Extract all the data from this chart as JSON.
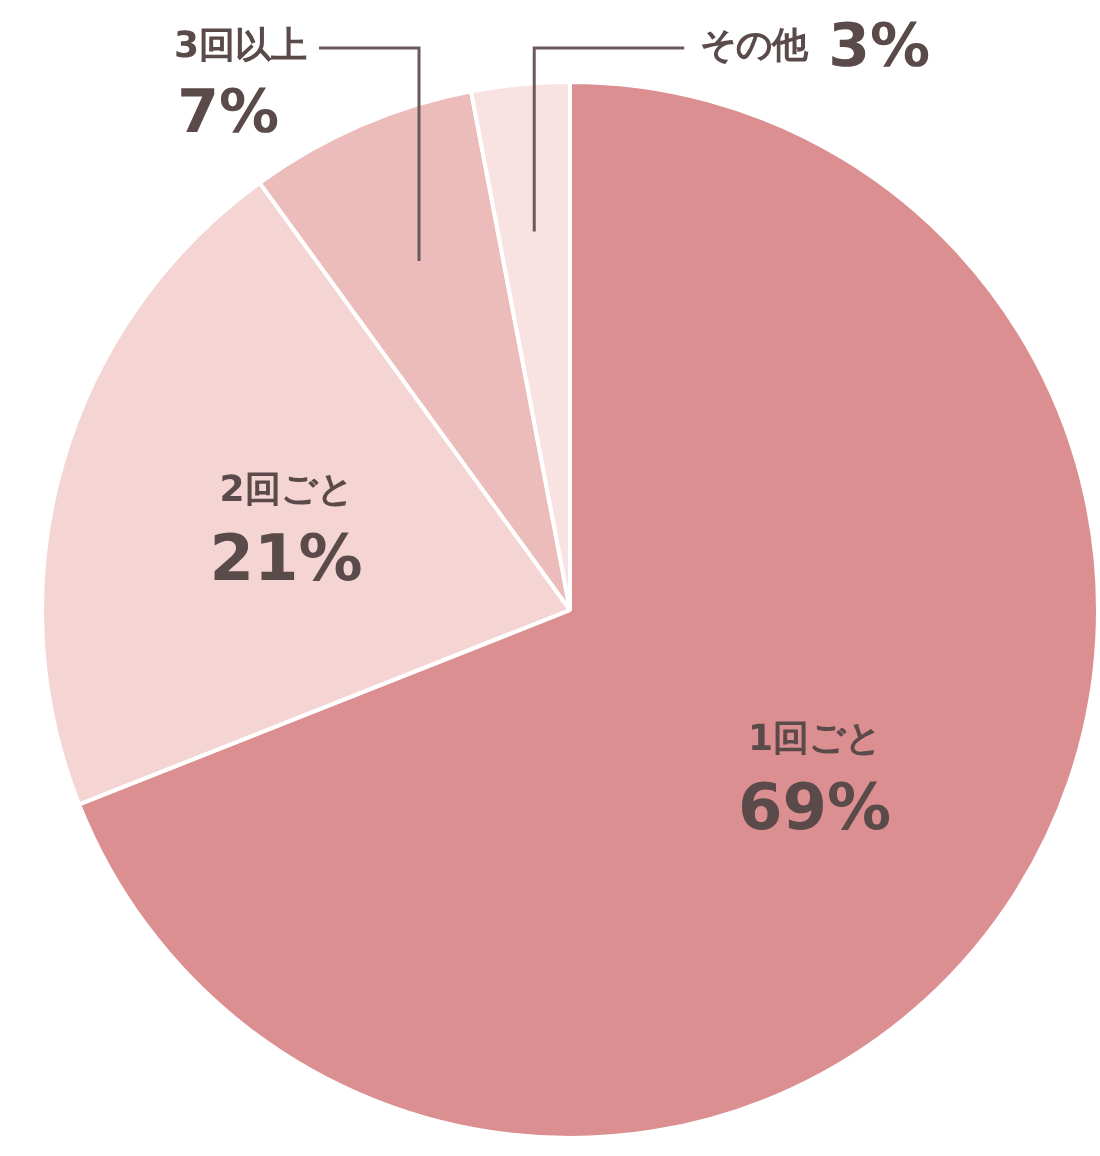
{
  "chart_data": {
    "type": "pie",
    "categories": [
      "1回ごと",
      "2回ごと",
      "3回以上",
      "その他"
    ],
    "values": [
      69,
      21,
      7,
      3
    ],
    "colors": [
      "#dc8f90",
      "#f5d5d4",
      "#ebbcb9",
      "#f8e3e2"
    ],
    "value_labels": [
      "69%",
      "21%",
      "7%",
      "3%"
    ],
    "legend": false
  }
}
